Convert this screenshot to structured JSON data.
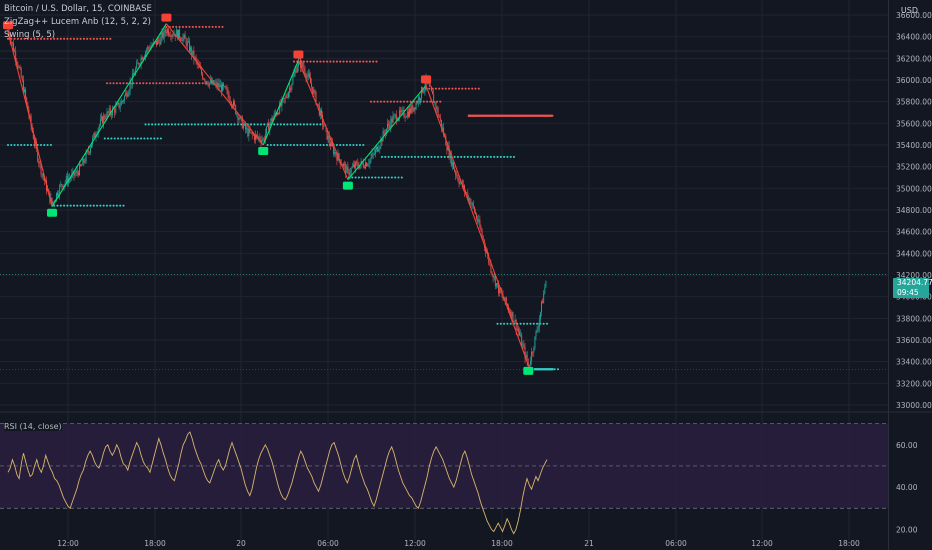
{
  "legend": {
    "symbol": "Bitcoin / U.S. Dollar, 15, COINBASE",
    "indicator1": "ZigZag++ Lucem Anb (12, 5, 2, 2)",
    "indicator2": "Swing (5, 5)"
  },
  "currency": "USD",
  "last_price": "34204.77",
  "countdown": "09:45",
  "rsi_label": "RSI (14, close)",
  "colors": {
    "background": "#131722",
    "up": "#26a69a",
    "down": "#ef5350",
    "zz_up": "#00e676",
    "zz_down": "#f44336",
    "swing_high": "#ef5350",
    "swing_low": "#2fd1c6",
    "rsi_line": "#d8b56a",
    "rsi_band": "#2a1e3f"
  },
  "chart_data": [
    {
      "type": "candlestick",
      "x_ticks": [
        "12:00",
        "18:00",
        "20",
        "06:00",
        "12:00",
        "18:00",
        "21",
        "06:00",
        "12:00",
        "18:00"
      ],
      "y_ticks": [
        "36600.00",
        "36400.00",
        "36200.00",
        "36000.00",
        "35800.00",
        "35600.00",
        "35400.00",
        "35200.00",
        "35000.00",
        "34800.00",
        "34600.00",
        "34400.00",
        "34200.00",
        "34000.00",
        "33800.00",
        "33600.00",
        "33400.00",
        "33200.00",
        "33000.00"
      ],
      "ylim": [
        33000,
        36600
      ],
      "last_close": 34204.77,
      "zigzag_pivots": [
        {
          "bar": 0,
          "price": 36450,
          "kind": "high"
        },
        {
          "bar": 40,
          "price": 34830,
          "kind": "low"
        },
        {
          "bar": 144,
          "price": 36520,
          "kind": "high"
        },
        {
          "bar": 232,
          "price": 35400,
          "kind": "low"
        },
        {
          "bar": 264,
          "price": 36180,
          "kind": "high"
        },
        {
          "bar": 309,
          "price": 35080,
          "kind": "low"
        },
        {
          "bar": 380,
          "price": 35950,
          "kind": "high"
        },
        {
          "bar": 473,
          "price": 33370,
          "kind": "low"
        }
      ],
      "swing_levels": [
        {
          "kind": "high",
          "price": 36380,
          "from": 0,
          "to": 95
        },
        {
          "kind": "high",
          "price": 36490,
          "from": 144,
          "to": 195
        },
        {
          "kind": "high",
          "price": 35970,
          "from": 90,
          "to": 180
        },
        {
          "kind": "high",
          "price": 36170,
          "from": 260,
          "to": 335
        },
        {
          "kind": "high",
          "price": 35920,
          "from": 380,
          "to": 430
        },
        {
          "kind": "high",
          "price": 35800,
          "from": 330,
          "to": 395
        },
        {
          "kind": "high",
          "price": 35670,
          "from": 420,
          "to": 495
        },
        {
          "kind": "low",
          "price": 35460,
          "from": 88,
          "to": 140
        },
        {
          "kind": "low",
          "price": 35590,
          "from": 125,
          "to": 285
        },
        {
          "kind": "low",
          "price": 35400,
          "from": 0,
          "to": 40
        },
        {
          "kind": "low",
          "price": 35400,
          "from": 236,
          "to": 325
        },
        {
          "kind": "low",
          "price": 35290,
          "from": 340,
          "to": 460
        },
        {
          "kind": "low",
          "price": 35100,
          "from": 310,
          "to": 360
        },
        {
          "kind": "low",
          "price": 34840,
          "from": 42,
          "to": 105
        },
        {
          "kind": "low",
          "price": 33750,
          "from": 445,
          "to": 490
        },
        {
          "kind": "low",
          "price": 33330,
          "from": 473,
          "to": 500
        }
      ]
    },
    {
      "type": "line",
      "name": "RSI (14, close)",
      "y_ticks": [
        "60.00",
        "40.00",
        "20.00"
      ],
      "ylim": [
        15,
        75
      ],
      "levels": [
        70,
        50,
        30
      ],
      "values": [
        47,
        49,
        53,
        50,
        46,
        44,
        51,
        56,
        52,
        48,
        45,
        46,
        50,
        53,
        49,
        47,
        50,
        55,
        52,
        49,
        47,
        44,
        43,
        41,
        38,
        35,
        33,
        31,
        30,
        33,
        36,
        39,
        43,
        46,
        48,
        52,
        55,
        57,
        55,
        52,
        50,
        49,
        52,
        56,
        59,
        60,
        57,
        55,
        57,
        60,
        58,
        54,
        51,
        50,
        48,
        52,
        55,
        58,
        61,
        59,
        55,
        52,
        50,
        49,
        47,
        51,
        55,
        59,
        63,
        60,
        56,
        53,
        49,
        46,
        44,
        43,
        47,
        51,
        56,
        60,
        62,
        65,
        66,
        63,
        59,
        56,
        53,
        51,
        48,
        45,
        43,
        42,
        45,
        48,
        51,
        53,
        50,
        48,
        50,
        54,
        58,
        61,
        58,
        55,
        52,
        49,
        45,
        41,
        38,
        36,
        39,
        44,
        49,
        53,
        56,
        58,
        60,
        58,
        55,
        52,
        48,
        44,
        40,
        37,
        35,
        34,
        36,
        39,
        42,
        46,
        50,
        54,
        57,
        55,
        52,
        49,
        47,
        45,
        42,
        40,
        38,
        41,
        45,
        49,
        53,
        57,
        60,
        61,
        58,
        55,
        51,
        47,
        44,
        42,
        45,
        49,
        53,
        55,
        51,
        47,
        44,
        41,
        39,
        36,
        33,
        31,
        34,
        38,
        42,
        46,
        50,
        54,
        57,
        59,
        56,
        52,
        48,
        45,
        42,
        40,
        38,
        36,
        35,
        33,
        31,
        30,
        33,
        37,
        41,
        45,
        50,
        54,
        57,
        59,
        57,
        55,
        53,
        50,
        47,
        44,
        42,
        40,
        43,
        47,
        51,
        55,
        57,
        54,
        50,
        46,
        43,
        40,
        37,
        33,
        30,
        27,
        24,
        22,
        20,
        19,
        21,
        23,
        21,
        19,
        22,
        25,
        23,
        20,
        18,
        20,
        24,
        29,
        35,
        40,
        44,
        41,
        39,
        42,
        45,
        43,
        46,
        49,
        51,
        53
      ]
    }
  ]
}
